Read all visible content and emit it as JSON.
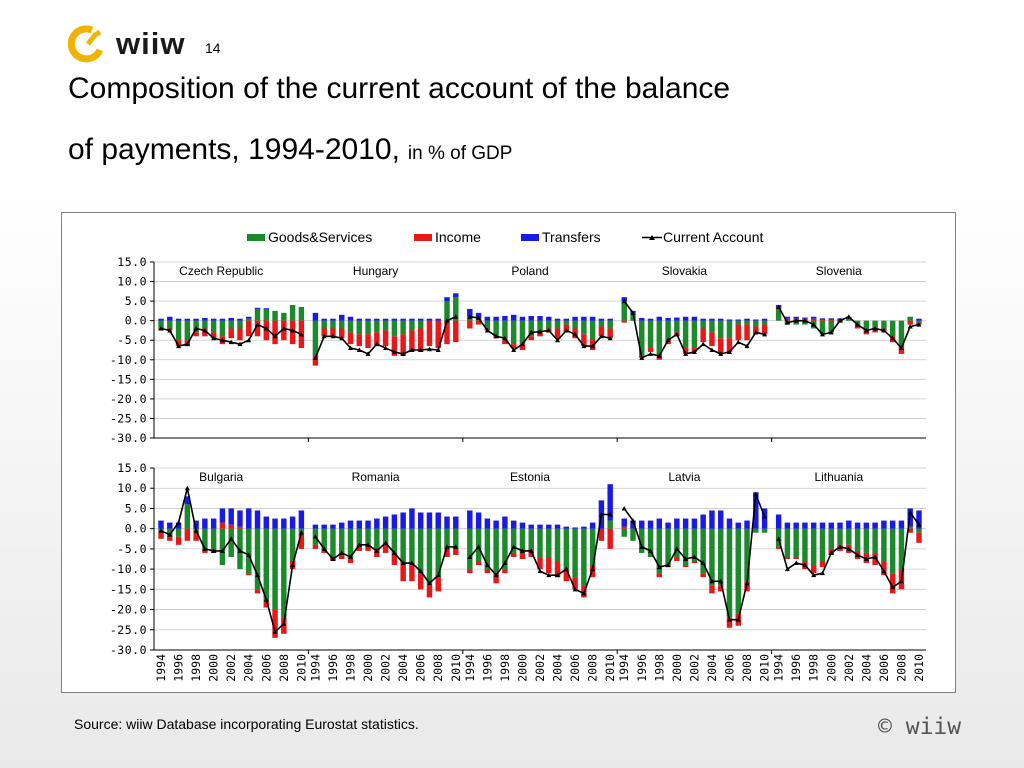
{
  "header": {
    "logo_text": "wiiw",
    "page_number": "14",
    "title_line1": "Composition of the current account of the balance",
    "title_line2": "of payments, 1994-2010",
    "title_comma": ",",
    "title_unit": "in % of GDP"
  },
  "footer": {
    "source": "Source: wiiw Database incorporating Eurostat statistics.",
    "copyright_symbol": "©",
    "copyright_text": "wiiw"
  },
  "colors": {
    "goods_services": "#1a8a2a",
    "income": "#e81818",
    "transfers": "#1a1ae6",
    "current_account": "#000000",
    "logo": "#f0b400"
  },
  "chart_data": {
    "type": "bar",
    "subtype": "stacked bar with line overlay",
    "legend": [
      "Goods&Services",
      "Income",
      "Transfers",
      "Current Account"
    ],
    "legend_placement": "top",
    "x_tick_labels": [
      "1994",
      "1996",
      "1998",
      "2000",
      "2002",
      "2004",
      "2006",
      "2008",
      "2010"
    ],
    "years": [
      1994,
      1995,
      1996,
      1997,
      1998,
      1999,
      2000,
      2001,
      2002,
      2003,
      2004,
      2005,
      2006,
      2007,
      2008,
      2009,
      2010
    ],
    "panels": [
      {
        "ylim": [
          -30,
          15
        ],
        "y_ticks": [
          "15.0",
          "10.0",
          "5.0",
          "0.0",
          "-5.0",
          "-10.0",
          "-15.0",
          "-20.0",
          "-25.0",
          "-30.0"
        ],
        "countries": [
          {
            "name": "Czech Republic",
            "goods": [
              -2,
              -2,
              -5,
              -5,
              -3,
              -2,
              -3,
              -4,
              -2,
              -2,
              0.5,
              3,
              3,
              2.5,
              2,
              4,
              3.5
            ],
            "income": [
              -0.5,
              -0.5,
              -1.5,
              -1.5,
              -1,
              -2,
              -1.5,
              -2,
              -2.5,
              -3,
              -4,
              -4,
              -5,
              -6,
              -5,
              -6,
              -7
            ],
            "transfers": [
              0.5,
              1,
              0.5,
              0.5,
              0.5,
              0.7,
              0.5,
              0.5,
              0.7,
              0.5,
              0.5,
              0.3,
              0.2,
              0,
              0,
              0,
              0
            ],
            "ca": [
              -2,
              -2.5,
              -6.5,
              -6,
              -2,
              -2.5,
              -4.5,
              -5,
              -5.5,
              -6,
              -5,
              -1,
              -2,
              -4,
              -2,
              -2.5,
              -3.5
            ]
          },
          {
            "name": "Hungary",
            "goods": [
              -9,
              -2,
              -2,
              -2,
              -3,
              -3.5,
              -3.5,
              -3,
              -2.5,
              -4,
              -3.5,
              -2.5,
              -2,
              0,
              0,
              5,
              6
            ],
            "income": [
              -2.5,
              -2,
              -2,
              -2.5,
              -3,
              -3,
              -3.5,
              -3.5,
              -4,
              -5,
              -5.5,
              -5.5,
              -6,
              -6.5,
              -7,
              -6,
              -5.5
            ],
            "transfers": [
              2,
              0.5,
              0.5,
              1.5,
              1,
              0.5,
              0.5,
              0.5,
              0.5,
              0.5,
              0.5,
              0.5,
              0.5,
              0.5,
              0.5,
              1,
              1
            ],
            "ca": [
              -9.5,
              -4,
              -4,
              -4.5,
              -7,
              -7.5,
              -8.5,
              -6,
              -7,
              -8,
              -8.5,
              -7.5,
              -7.5,
              -7.3,
              -7.5,
              0,
              1
            ]
          },
          {
            "name": "Poland",
            "goods": [
              1,
              0.5,
              -2,
              -4,
              -5,
              -6,
              -6,
              -4,
              -3,
              -2,
              -2,
              -1,
              -2,
              -3.5,
              -5,
              -1.5,
              -2
            ],
            "income": [
              -2,
              -1,
              -0.5,
              -0.5,
              -1,
              -1,
              -1.5,
              -1,
              -1,
              -1,
              -2.5,
              -2,
              -2.5,
              -3,
              -2.5,
              -2.5,
              -2.5
            ],
            "transfers": [
              2,
              1.5,
              1,
              1,
              1.2,
              1.5,
              1,
              1.2,
              1.2,
              1,
              0.5,
              0.5,
              1,
              1,
              1,
              0.5,
              0.5
            ],
            "ca": [
              1,
              0.7,
              -2.5,
              -4,
              -4.5,
              -7.5,
              -6,
              -3,
              -2.8,
              -2.5,
              -5,
              -2.5,
              -3.5,
              -6.5,
              -6.5,
              -4,
              -4.5
            ]
          },
          {
            "name": "Slovakia",
            "goods": [
              5,
              2,
              -9,
              -7,
              -9,
              -5,
              -3,
              -7,
              -7,
              -2,
              -3,
              -4.5,
              -4.5,
              -1,
              -1,
              -1.5,
              -1
            ],
            "income": [
              -0.5,
              0,
              -0.5,
              -1,
              -1,
              -1,
              -1,
              -1.5,
              -1,
              -3.5,
              -3.5,
              -4,
              -3.5,
              -4,
              -4,
              -2,
              -2.5
            ],
            "transfers": [
              1,
              0.5,
              0.7,
              0.5,
              1,
              0.7,
              0.8,
              1,
              1,
              0.5,
              0.5,
              0.5,
              0.3,
              0.3,
              0.5,
              0.3,
              0.5
            ],
            "ca": [
              5,
              2,
              -9.5,
              -8.5,
              -9,
              -5,
              -3.5,
              -8.5,
              -8,
              -6,
              -7.5,
              -8.5,
              -8,
              -5.5,
              -6.5,
              -3,
              -3.5
            ]
          },
          {
            "name": "Slovenia",
            "goods": [
              3,
              -1,
              -1,
              -1,
              -2,
              -3.5,
              -3,
              -0.5,
              0.5,
              -1.5,
              -2.5,
              -2,
              -2,
              -4,
              -7,
              1,
              -0.5
            ],
            "income": [
              0.5,
              0.5,
              0.5,
              0.5,
              0.5,
              0.3,
              0.3,
              0.3,
              0,
              -0.5,
              -1,
              -1,
              -1,
              -1.5,
              -1.5,
              -1,
              -0.5
            ],
            "transfers": [
              0.5,
              0.5,
              0.5,
              0.3,
              0.5,
              0.3,
              0.3,
              0.3,
              0.5,
              0,
              0,
              0,
              0,
              0,
              0,
              0,
              0.5
            ],
            "ca": [
              3.5,
              -0.5,
              0,
              0,
              -1,
              -3.5,
              -3,
              0,
              1,
              -1,
              -2.5,
              -2,
              -2.5,
              -4.5,
              -7,
              -1.5,
              -1
            ]
          }
        ]
      },
      {
        "ylim": [
          -30,
          15
        ],
        "y_ticks": [
          "15.0",
          "10.0",
          "5.0",
          "0.0",
          "-5.0",
          "-10.0",
          "-15.0",
          "-20.0",
          "-25.0",
          "-30.0"
        ],
        "countries": [
          {
            "name": "Bulgaria",
            "goods": [
              -1,
              -2,
              -2,
              6,
              -1,
              -5,
              -5,
              -9,
              -7,
              -10,
              -11,
              -15,
              -18,
              -20,
              -22,
              -8,
              -1.5
            ],
            "income": [
              -1.5,
              -1,
              -2,
              -3,
              -2,
              -1,
              -1,
              1.5,
              1,
              0.5,
              -0.5,
              -1,
              -1.5,
              -7,
              -4,
              -2,
              -3.5
            ],
            "transfers": [
              2,
              1.5,
              1.5,
              2,
              2,
              2.5,
              2.5,
              3.5,
              4,
              4,
              5,
              4.5,
              3,
              2.5,
              2.5,
              3,
              4.5
            ],
            "ca": [
              -0.5,
              -1.5,
              1.5,
              10,
              -0.5,
              -5,
              -5.5,
              -5.5,
              -2.5,
              -5.5,
              -6.5,
              -11.5,
              -17.5,
              -25.5,
              -23.5,
              -9,
              -1
            ]
          },
          {
            "name": "Romania",
            "goods": [
              -4,
              -5,
              -7,
              -6,
              -7,
              -4,
              -4,
              -5,
              -4,
              -6,
              -8,
              -9,
              -11,
              -14,
              -12,
              -5,
              -5
            ],
            "income": [
              -1,
              -1,
              -1,
              -1.5,
              -1.5,
              -1.5,
              -1.5,
              -2,
              -2,
              -3,
              -5,
              -4,
              -4,
              -3,
              -3.5,
              -2,
              -1.5
            ],
            "transfers": [
              1,
              1,
              1,
              1.5,
              2,
              2,
              2,
              2.5,
              3,
              3.5,
              4,
              5,
              4,
              4,
              4,
              3,
              3
            ],
            "ca": [
              -2,
              -5,
              -7.5,
              -6,
              -7,
              -4,
              -4,
              -5.5,
              -3.5,
              -6,
              -8.5,
              -8.5,
              -10.5,
              -13.5,
              -11.5,
              -4.5,
              -4.5
            ]
          },
          {
            "name": "Estonia",
            "goods": [
              -10,
              -8,
              -10,
              -11,
              -10,
              -6,
              -6,
              -5,
              -7,
              -7,
              -8,
              -10,
              -12,
              -14,
              -9,
              0,
              2
            ],
            "income": [
              -1,
              -1,
              -1,
              -2.5,
              -1,
              -1,
              -1.5,
              -2,
              -3,
              -4,
              -4,
              -3,
              -3,
              -3,
              -3,
              -3,
              -5
            ],
            "transfers": [
              4.5,
              4,
              2.5,
              2,
              3,
              2,
              1.5,
              1,
              1,
              1,
              1,
              0.5,
              0.3,
              0.5,
              1.5,
              7,
              9
            ],
            "ca": [
              -7,
              -4.5,
              -9,
              -11.5,
              -8.5,
              -4.5,
              -5.5,
              -5.5,
              -10.5,
              -11.5,
              -11.5,
              -10,
              -15,
              -16,
              -10,
              3.5,
              3.5
            ]
          },
          {
            "name": "Latvia",
            "goods": [
              -2,
              -3,
              -6,
              -7,
              -11,
              -9,
              -7,
              -9,
              -8,
              -11,
              -14,
              -14,
              -22,
              -21,
              -13,
              -1,
              -1
            ],
            "income": [
              0.5,
              0,
              0,
              0,
              -1,
              -0.5,
              -1,
              -0.5,
              -0.5,
              -1,
              -2,
              -1.5,
              -2.5,
              -3,
              -2.5,
              0,
              0
            ],
            "transfers": [
              2,
              2,
              2,
              2,
              2.5,
              1.5,
              2.5,
              2.5,
              2.5,
              3.5,
              4.5,
              4.5,
              2.5,
              1.5,
              2,
              9,
              5
            ],
            "ca": [
              5,
              2,
              -4.5,
              -5.5,
              -9.5,
              -9,
              -5,
              -7.5,
              -7,
              -8.5,
              -13,
              -13,
              -22.5,
              -22.5,
              -13.5,
              8.5,
              3
            ]
          },
          {
            "name": "Lithuania",
            "goods": [
              -4.5,
              -7,
              -7,
              -8,
              -9,
              -8,
              -5,
              -4,
              -4,
              -5.5,
              -6,
              -6,
              -8,
              -11,
              -10,
              0.5,
              -1
            ],
            "income": [
              -0.5,
              -0.5,
              -0.5,
              -2,
              -2,
              -1.5,
              -1.5,
              -1.5,
              -2,
              -2,
              -2.5,
              -3,
              -3.5,
              -5,
              -5,
              -1,
              -2.5
            ],
            "transfers": [
              3.5,
              1.5,
              1.5,
              1.5,
              1.5,
              1.5,
              1.5,
              1.5,
              2,
              1.5,
              1.5,
              1.5,
              2,
              2,
              2,
              4.5,
              4.5
            ],
            "ca": [
              -2.5,
              -10,
              -8.5,
              -9,
              -11.5,
              -11,
              -6,
              -4.5,
              -5,
              -6.5,
              -7.5,
              -7,
              -10.5,
              -14.5,
              -13,
              4,
              1
            ]
          }
        ]
      }
    ]
  }
}
